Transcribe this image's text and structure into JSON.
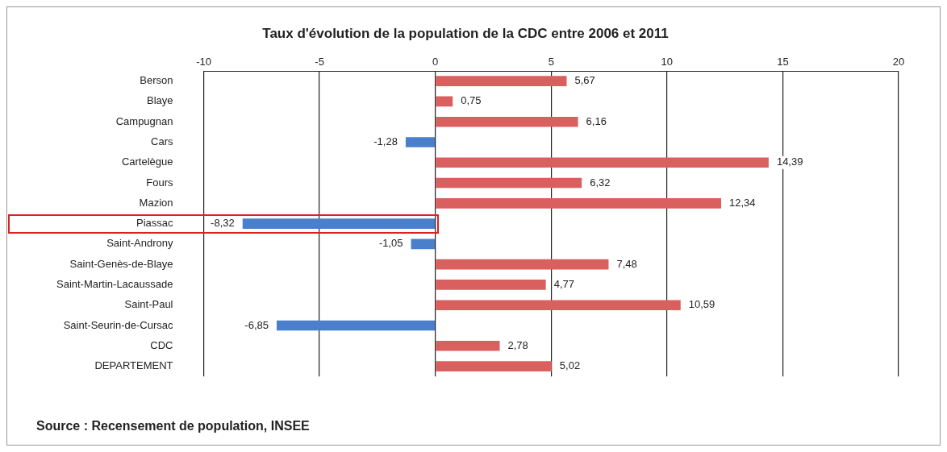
{
  "chart_data": {
    "type": "bar",
    "orientation": "horizontal",
    "title": "Taux d'évolution de la population de la CDC entre 2006 et 2011",
    "categories": [
      "Berson",
      "Blaye",
      "Campugnan",
      "Cars",
      "Cartelègue",
      "Fours",
      "Mazion",
      "Piassac",
      "Saint-Androny",
      "Saint-Genès-de-Blaye",
      "Saint-Martin-Lacaussade",
      "Saint-Paul",
      "Saint-Seurin-de-Cursac",
      "CDC",
      "DEPARTEMENT"
    ],
    "values": [
      5.67,
      0.75,
      6.16,
      -1.28,
      14.39,
      6.32,
      12.34,
      -8.32,
      -1.05,
      7.48,
      4.77,
      10.59,
      -6.85,
      2.78,
      5.02
    ],
    "value_labels": [
      "5,67",
      "0,75",
      "6,16",
      "-1,28",
      "14,39",
      "6,32",
      "12,34",
      "-8,32",
      "-1,05",
      "7,48",
      "4,77",
      "10,59",
      "-6,85",
      "2,78",
      "5,02"
    ],
    "colors": [
      "#d9605f",
      "#d9605f",
      "#d9605f",
      "#4a7fcc",
      "#d9605f",
      "#d9605f",
      "#d9605f",
      "#4a7fcc",
      "#4a7fcc",
      "#d9605f",
      "#d9605f",
      "#d9605f",
      "#4a7fcc",
      "#d9605f",
      "#d9605f"
    ],
    "xlim": [
      -10,
      20
    ],
    "xticks": [
      -10,
      -5,
      0,
      5,
      10,
      15,
      20
    ],
    "grid": "x",
    "legend": false,
    "annotations": [
      "Source : Recensement de population, INSEE"
    ]
  }
}
